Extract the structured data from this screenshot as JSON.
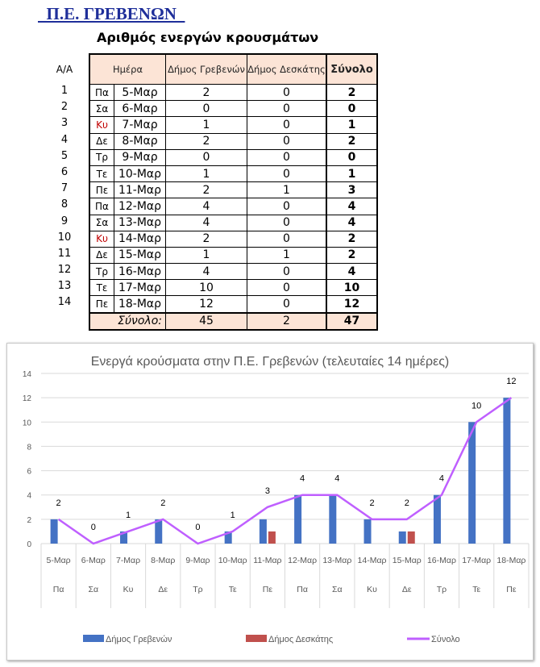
{
  "header": {
    "title": "  Π.Ε. ΓΡΕΒΕΝΩΝ  ",
    "subtitle": "Αριθμός ενεργών κρουσμάτων"
  },
  "table": {
    "aa_label": "Α/Α",
    "columns": {
      "day": "Ημέρα",
      "grevena": "Δήμος Γρεβενών",
      "deskati": "Δήμος Δεσκάτης",
      "total": "Σύνολο"
    },
    "rows": [
      {
        "n": "1",
        "day": "Πα",
        "date": "5-Μαρ",
        "g": "2",
        "d": "0",
        "t": "2"
      },
      {
        "n": "2",
        "day": "Σα",
        "date": "6-Μαρ",
        "g": "0",
        "d": "0",
        "t": "0"
      },
      {
        "n": "3",
        "day": "Κυ",
        "date": "7-Μαρ",
        "g": "1",
        "d": "0",
        "t": "1"
      },
      {
        "n": "4",
        "day": "Δε",
        "date": "8-Μαρ",
        "g": "2",
        "d": "0",
        "t": "2"
      },
      {
        "n": "5",
        "day": "Τρ",
        "date": "9-Μαρ",
        "g": "0",
        "d": "0",
        "t": "0"
      },
      {
        "n": "6",
        "day": "Τε",
        "date": "10-Μαρ",
        "g": "1",
        "d": "0",
        "t": "1"
      },
      {
        "n": "7",
        "day": "Πε",
        "date": "11-Μαρ",
        "g": "2",
        "d": "1",
        "t": "3"
      },
      {
        "n": "8",
        "day": "Πα",
        "date": "12-Μαρ",
        "g": "4",
        "d": "0",
        "t": "4"
      },
      {
        "n": "9",
        "day": "Σα",
        "date": "13-Μαρ",
        "g": "4",
        "d": "0",
        "t": "4"
      },
      {
        "n": "10",
        "day": "Κυ",
        "date": "14-Μαρ",
        "g": "2",
        "d": "0",
        "t": "2"
      },
      {
        "n": "11",
        "day": "Δε",
        "date": "15-Μαρ",
        "g": "1",
        "d": "1",
        "t": "2"
      },
      {
        "n": "12",
        "day": "Τρ",
        "date": "16-Μαρ",
        "g": "4",
        "d": "0",
        "t": "4"
      },
      {
        "n": "13",
        "day": "Τε",
        "date": "17-Μαρ",
        "g": "10",
        "d": "0",
        "t": "10"
      },
      {
        "n": "14",
        "day": "Πε",
        "date": "18-Μαρ",
        "g": "12",
        "d": "0",
        "t": "12"
      }
    ],
    "sum": {
      "label": "Σύνολο:",
      "g": "45",
      "d": "2",
      "t": "47"
    },
    "sunday_color": "#c00000",
    "header_bg": "#fce4d6"
  },
  "chart_data": {
    "type": "bar+line",
    "title": "Ενεργά κρούσματα στην Π.Ε. Γρεβενών (τελευταίες 14 ημέρες)",
    "categories": [
      "5-Μαρ",
      "6-Μαρ",
      "7-Μαρ",
      "8-Μαρ",
      "9-Μαρ",
      "10-Μαρ",
      "11-Μαρ",
      "12-Μαρ",
      "13-Μαρ",
      "14-Μαρ",
      "15-Μαρ",
      "16-Μαρ",
      "17-Μαρ",
      "18-Μαρ"
    ],
    "subcategories": [
      "Πα",
      "Σα",
      "Κυ",
      "Δε",
      "Τρ",
      "Τε",
      "Πε",
      "Πα",
      "Σα",
      "Κυ",
      "Δε",
      "Τρ",
      "Τε",
      "Πε"
    ],
    "series": [
      {
        "name": "Δήμος Γρεβενών",
        "type": "bar",
        "color": "#4472c4",
        "values": [
          2,
          0,
          1,
          2,
          0,
          1,
          2,
          4,
          4,
          2,
          1,
          4,
          10,
          12
        ]
      },
      {
        "name": "Δήμος Δεσκάτης",
        "type": "bar",
        "color": "#c0504d",
        "values": [
          0,
          0,
          0,
          0,
          0,
          0,
          1,
          0,
          0,
          0,
          1,
          0,
          0,
          0
        ]
      },
      {
        "name": "Σύνολο",
        "type": "line",
        "color": "#bf5fff",
        "values": [
          2,
          0,
          1,
          2,
          0,
          1,
          3,
          4,
          4,
          2,
          2,
          4,
          10,
          12
        ],
        "data_labels": true
      }
    ],
    "yticks": [
      "0",
      "2",
      "4",
      "6",
      "8",
      "10",
      "12",
      "14"
    ],
    "ylim": [
      0,
      14
    ],
    "grid": true,
    "legend": "bottom"
  }
}
